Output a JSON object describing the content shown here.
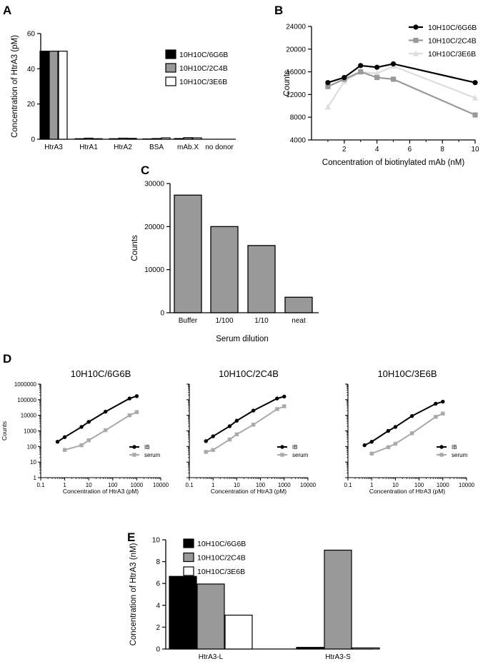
{
  "panel_letters": [
    "A",
    "B",
    "C",
    "D",
    "E"
  ],
  "colors": {
    "black": "#000000",
    "gray": "#999999",
    "dark_gray": "#999999",
    "light_gray": "#dddddd",
    "white": "#ffffff"
  },
  "chart_data": [
    {
      "panel": "A",
      "type": "bar",
      "categories": [
        "HtrA3",
        "HtrA1",
        "HtrA2",
        "BSA",
        "mAb.X",
        "no donor"
      ],
      "series": [
        {
          "name": "10H10C/6G6B",
          "fill": "#000000",
          "values": [
            50,
            0.3,
            0.3,
            0.2,
            0.4,
            0
          ]
        },
        {
          "name": "10H10C/2C4B",
          "fill": "#999999",
          "values": [
            50,
            0.6,
            0.6,
            0.4,
            0.9,
            0
          ]
        },
        {
          "name": "10H10C/3E6B",
          "fill": "#ffffff",
          "values": [
            50,
            0.3,
            0.5,
            0.8,
            0.8,
            0
          ]
        }
      ],
      "title": "",
      "xlabel": "",
      "ylabel": "Concentration of HtrA3  (pM)",
      "ylim": [
        0,
        60
      ],
      "yticks": [
        0,
        20,
        40,
        60
      ],
      "legend_position": "right"
    },
    {
      "panel": "B",
      "type": "line",
      "x": [
        1,
        2,
        3,
        4,
        5,
        10
      ],
      "series": [
        {
          "name": "10H10C/6G6B",
          "color": "#000000",
          "marker": "circle",
          "values": [
            14100,
            15000,
            17100,
            16800,
            17400,
            14100
          ]
        },
        {
          "name": "10H10C/2C4B",
          "color": "#999999",
          "marker": "square",
          "values": [
            13400,
            14700,
            16000,
            15000,
            14700,
            8400
          ]
        },
        {
          "name": "10H10C/3E6B",
          "color": "#dddddd",
          "marker": "triangle",
          "values": [
            9800,
            14300,
            16000,
            15700,
            17000,
            11400
          ]
        }
      ],
      "title": "",
      "xlabel": "Concentration of biotinylated mAb (nM)",
      "ylabel": "Counts",
      "xlim": [
        0,
        10
      ],
      "ylim": [
        4000,
        24000
      ],
      "xticks": [
        2,
        4,
        6,
        8,
        10
      ],
      "yticks": [
        4000,
        8000,
        12000,
        16000,
        20000,
        24000
      ],
      "legend_position": "top-right"
    },
    {
      "panel": "C",
      "type": "bar",
      "categories": [
        "Buffer",
        "1/100",
        "1/10",
        "neat"
      ],
      "values": [
        27300,
        20000,
        15600,
        3600
      ],
      "title": "",
      "xlabel": "Serum dilution",
      "ylabel": "Counts",
      "ylim": [
        0,
        30000
      ],
      "yticks": [
        0,
        10000,
        20000,
        30000
      ]
    },
    {
      "panel": "D1",
      "type": "line",
      "title": "10H10C/6G6B",
      "xlabel": "Concentration of HtrA3 (pM)",
      "ylabel": "Counts",
      "xscale": "log",
      "yscale": "log",
      "xlim": [
        0.1,
        10000
      ],
      "ylim": [
        1,
        1000000
      ],
      "xticks": [
        "0.1",
        "1",
        "10",
        "100",
        "1000",
        "10000"
      ],
      "yticks": [
        "1",
        "10",
        "100",
        "1000",
        "10000",
        "100000",
        "1000000"
      ],
      "series": [
        {
          "name": "IB",
          "color": "#000000",
          "marker": "circle",
          "x": [
            0.5,
            1,
            5,
            10,
            50,
            500,
            1000
          ],
          "values": [
            200,
            400,
            1800,
            3800,
            17000,
            120000,
            170000
          ]
        },
        {
          "name": "serum",
          "color": "#aaaaaa",
          "marker": "square",
          "x": [
            1,
            5,
            10,
            50,
            500,
            1000
          ],
          "values": [
            60,
            120,
            250,
            1100,
            10000,
            16000
          ]
        }
      ],
      "legend_position": "bottom-right"
    },
    {
      "panel": "D2",
      "type": "line",
      "title": "10H10C/2C4B",
      "xlabel": "Concentration of HtrA3 (pM)",
      "ylabel": "",
      "xscale": "log",
      "yscale": "log",
      "xlim": [
        0.1,
        10000
      ],
      "ylim": [
        1,
        1000000
      ],
      "xticks": [
        "0.1",
        "1",
        "10",
        "100",
        "1000",
        "10000"
      ],
      "yticks": [
        "1",
        "10",
        "100",
        "1000",
        "10000",
        "100000",
        "1000000"
      ],
      "series": [
        {
          "name": "IB",
          "color": "#000000",
          "marker": "circle",
          "x": [
            0.5,
            1,
            5,
            10,
            50,
            500,
            1000
          ],
          "values": [
            220,
            450,
            2000,
            4500,
            20000,
            120000,
            160000
          ]
        },
        {
          "name": "serum",
          "color": "#aaaaaa",
          "marker": "square",
          "x": [
            0.5,
            1,
            5,
            10,
            50,
            500,
            1000
          ],
          "values": [
            45,
            60,
            280,
            600,
            2500,
            25000,
            38000
          ]
        }
      ],
      "legend_position": "bottom-right"
    },
    {
      "panel": "D3",
      "type": "line",
      "title": "10H10C/3E6B",
      "xlabel": "Concentration of HtrA3 (pM)",
      "ylabel": "",
      "xscale": "log",
      "yscale": "log",
      "xlim": [
        0.1,
        10000
      ],
      "ylim": [
        1,
        1000000
      ],
      "xticks": [
        "0.1",
        "1",
        "10",
        "100",
        "1000",
        "10000"
      ],
      "yticks": [
        "1",
        "10",
        "100",
        "1000",
        "10000",
        "100000",
        "1000000"
      ],
      "series": [
        {
          "name": "IB",
          "color": "#000000",
          "marker": "circle",
          "x": [
            0.5,
            1,
            5,
            10,
            50,
            500,
            1000
          ],
          "values": [
            120,
            200,
            1000,
            1800,
            9000,
            55000,
            75000
          ]
        },
        {
          "name": "serum",
          "color": "#aaaaaa",
          "marker": "square",
          "x": [
            1,
            5,
            10,
            50,
            500,
            1000
          ],
          "values": [
            35,
            90,
            150,
            700,
            8000,
            13000
          ]
        }
      ],
      "legend_position": "bottom-right"
    },
    {
      "panel": "E",
      "type": "bar",
      "categories": [
        "HtrA3-L",
        "HtrA3-S"
      ],
      "series": [
        {
          "name": "10H10C/6G6B",
          "fill": "#000000",
          "values": [
            6.65,
            0.15
          ]
        },
        {
          "name": "10H10C/2C4B",
          "fill": "#999999",
          "values": [
            5.95,
            9.05
          ]
        },
        {
          "name": "10H10C/3E6B",
          "fill": "#ffffff",
          "values": [
            3.1,
            0.1
          ]
        }
      ],
      "title": "",
      "xlabel": "",
      "ylabel": "Concentration of HtrA3  (nM)",
      "ylim": [
        0,
        10
      ],
      "yticks": [
        0,
        2,
        4,
        6,
        8,
        10
      ],
      "legend_position": "top-left"
    }
  ]
}
